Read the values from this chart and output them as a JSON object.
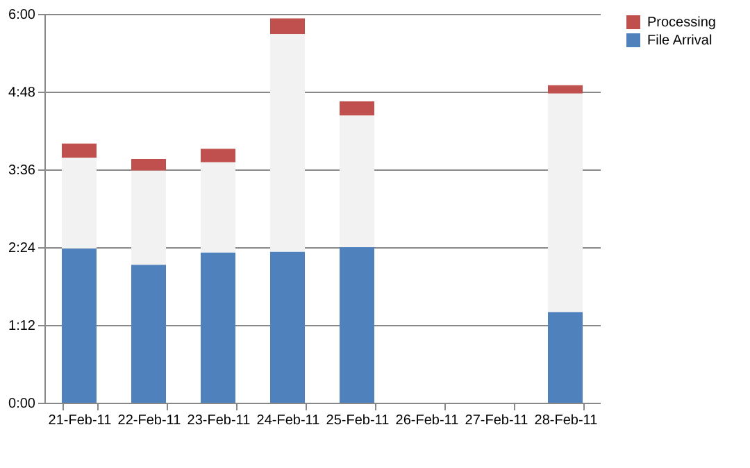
{
  "chart_data": {
    "type": "bar",
    "stacked": true,
    "categories": [
      "21-Feb-11",
      "22-Feb-11",
      "23-Feb-11",
      "24-Feb-11",
      "25-Feb-11",
      "26-Feb-11",
      "27-Feb-11",
      "28-Feb-11"
    ],
    "series": [
      {
        "name": "File Arrival",
        "color": "#4f81bd",
        "values": [
          2.38,
          2.13,
          2.32,
          2.33,
          2.4,
          null,
          null,
          1.4
        ]
      },
      {
        "color": "#f2f2f2",
        "values": [
          1.4,
          1.45,
          1.39,
          3.36,
          2.03,
          null,
          null,
          3.37
        ]
      },
      {
        "name": "Processing",
        "color": "#c0504d",
        "values": [
          0.22,
          0.18,
          0.21,
          0.24,
          0.22,
          null,
          null,
          0.13
        ]
      }
    ],
    "ylim": [
      0,
      6
    ],
    "yticks": [
      {
        "value": 0,
        "label": "0:00"
      },
      {
        "value": 1.2,
        "label": "1:12"
      },
      {
        "value": 2.4,
        "label": "2:24"
      },
      {
        "value": 3.6,
        "label": "3:36"
      },
      {
        "value": 4.8,
        "label": "4:48"
      },
      {
        "value": 6,
        "label": "6:00"
      }
    ],
    "grid": "y",
    "legend": "right"
  }
}
